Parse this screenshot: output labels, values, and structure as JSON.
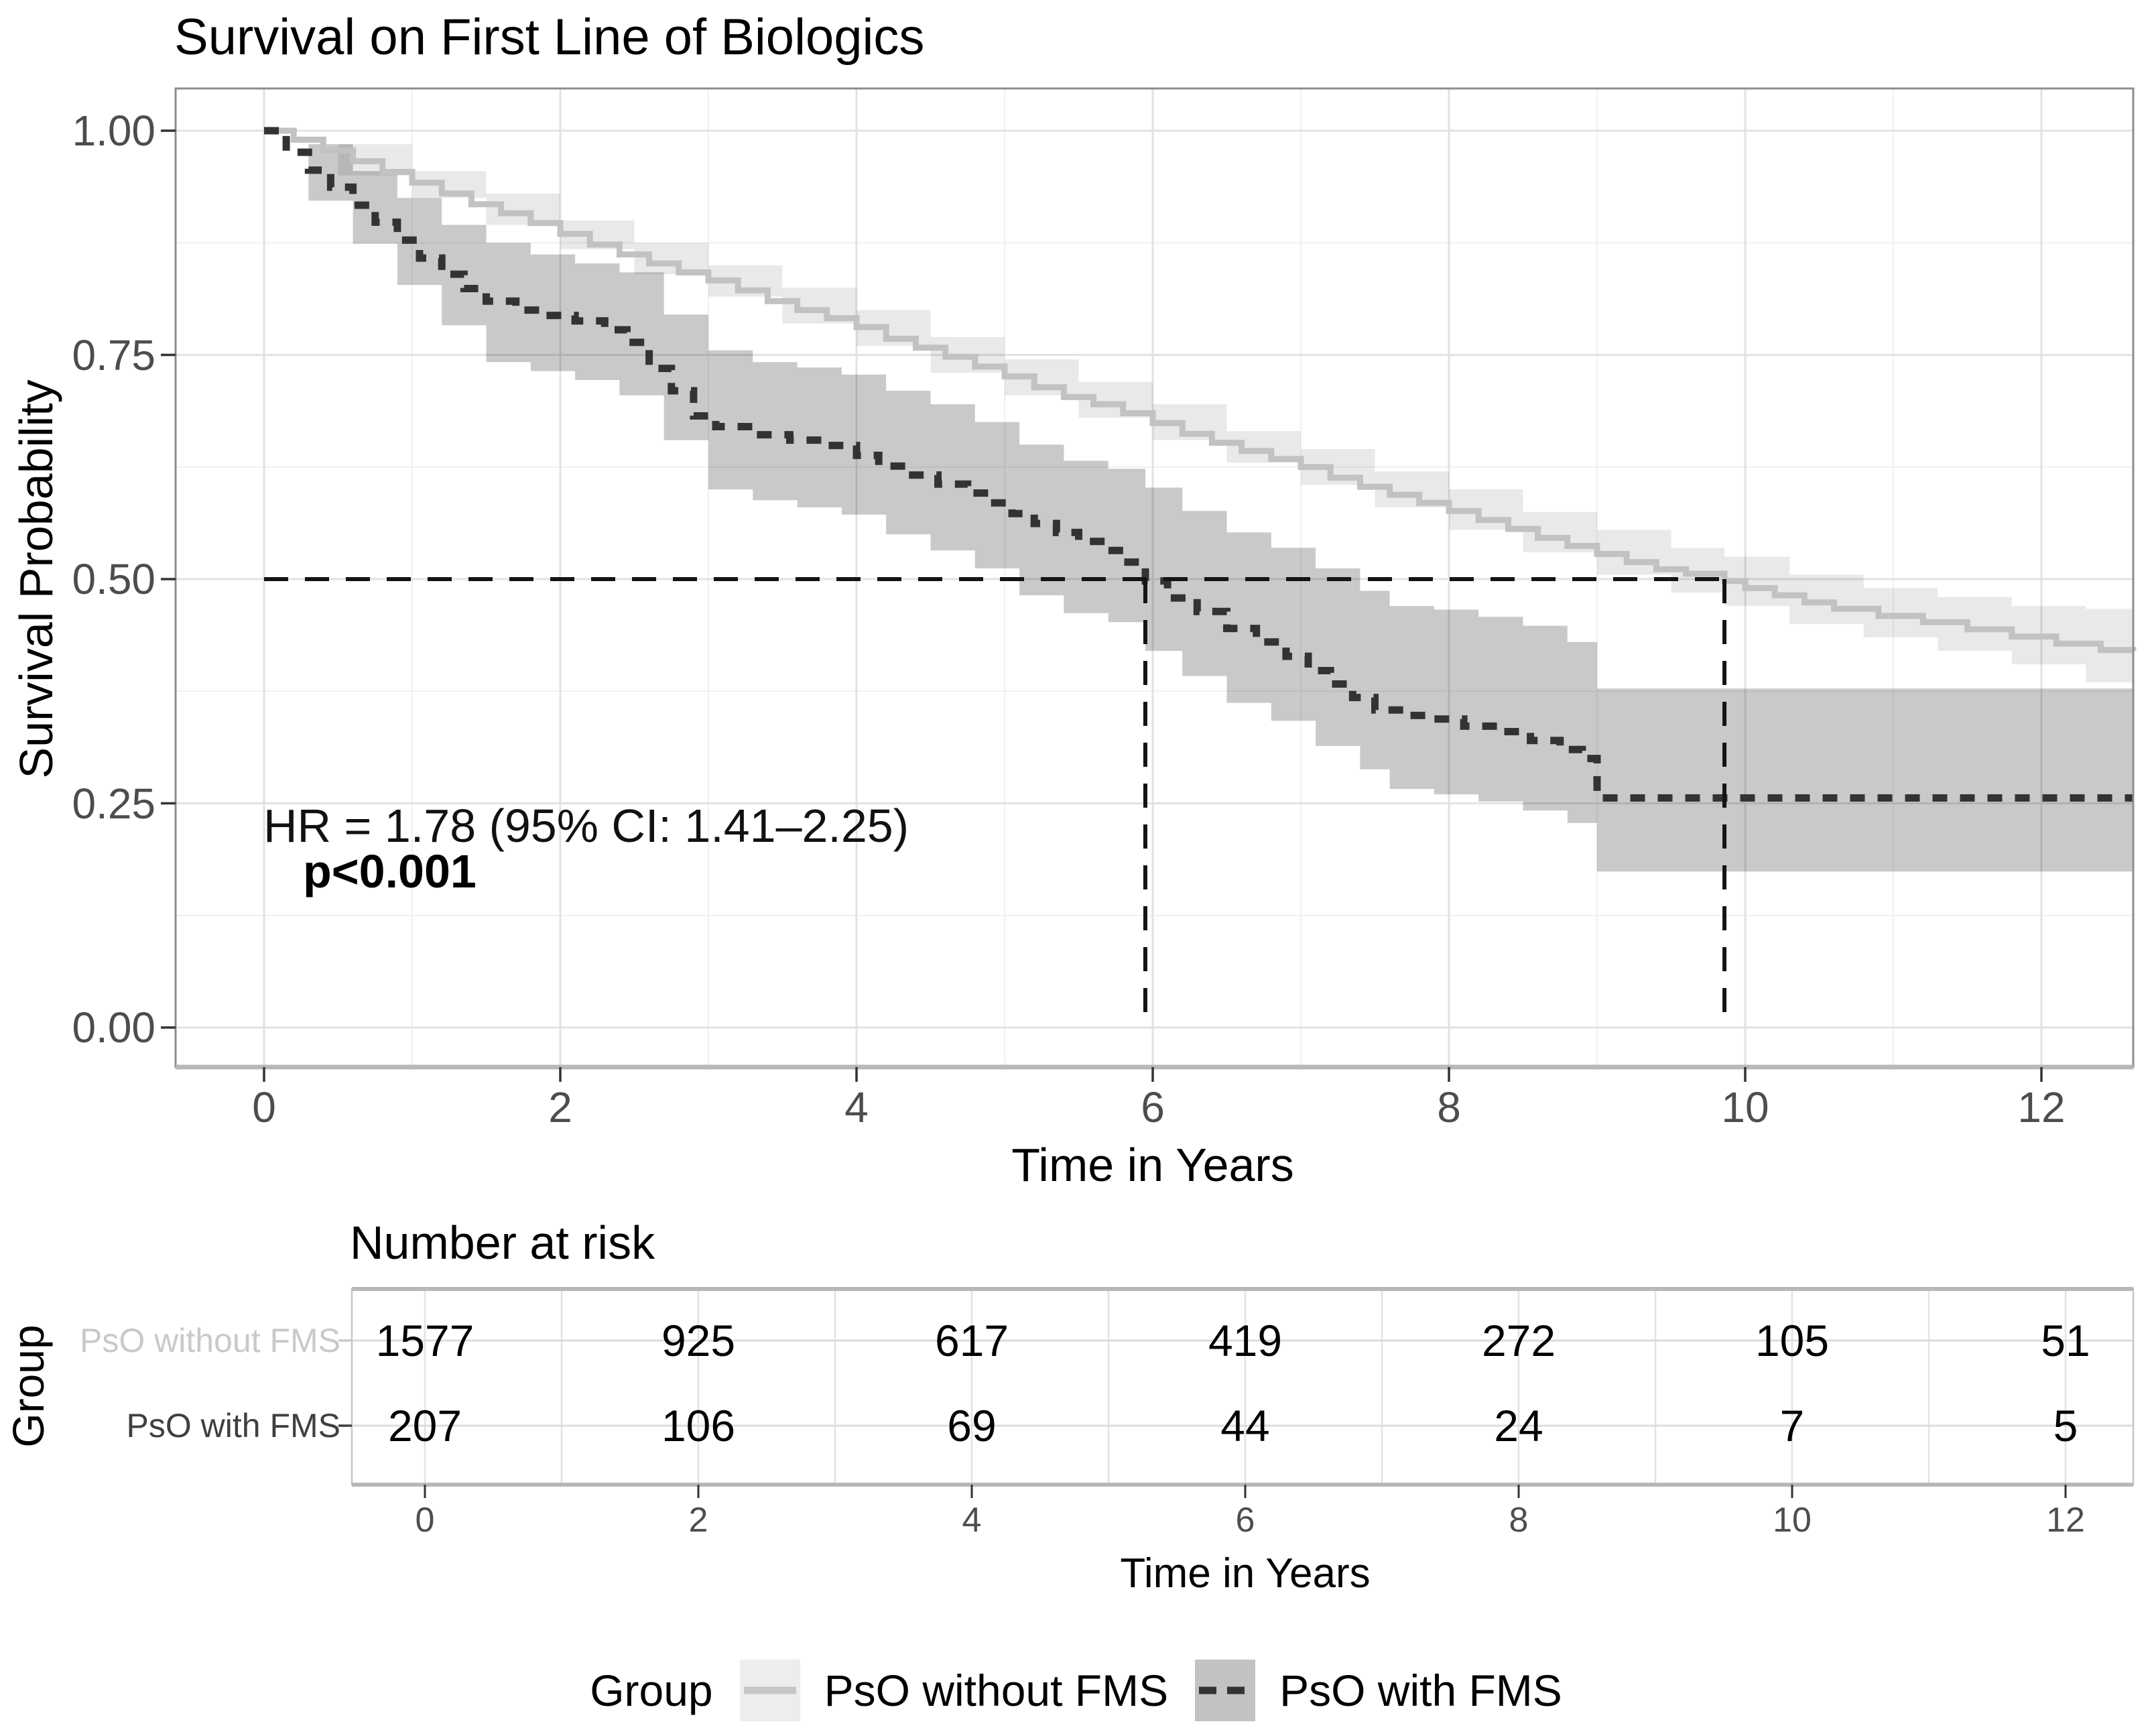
{
  "chart_data": {
    "type": "line",
    "subtype": "kaplan-meier-step",
    "title": "Survival on First Line of Biologics",
    "xlabel": "Time in Years",
    "ylabel": "Survival Probability",
    "xlim": [
      -0.6,
      12.62
    ],
    "ylim": [
      -0.045,
      1.047
    ],
    "x_ticks": [
      0,
      2,
      4,
      6,
      8,
      10,
      12
    ],
    "y_ticks": [
      {
        "label": "1.00",
        "value": 1.0
      },
      {
        "label": "0.75",
        "value": 0.75
      },
      {
        "label": "0.50",
        "value": 0.5
      },
      {
        "label": "0.25",
        "value": 0.25
      },
      {
        "label": "0.00",
        "value": 0.0
      }
    ],
    "grid": true,
    "legend_position": "bottom",
    "annotation": {
      "line1": "HR = 1.78 (95% CI: 1.41–2.25)",
      "line2": "p<0.001"
    },
    "median_lines": {
      "y": 0.5,
      "x_values": [
        5.95,
        9.86
      ]
    },
    "series": [
      {
        "name": "PsO without FMS",
        "color": "#C2C2C2",
        "band_color": "rgba(0,0,0,0.085)",
        "dashed": false,
        "steps": [
          [
            0,
            1.0
          ],
          [
            0.2,
            0.99
          ],
          [
            0.4,
            0.978
          ],
          [
            0.6,
            0.966
          ],
          [
            0.8,
            0.954
          ],
          [
            1.0,
            0.942
          ],
          [
            1.2,
            0.93
          ],
          [
            1.4,
            0.918
          ],
          [
            1.6,
            0.908
          ],
          [
            1.8,
            0.897
          ],
          [
            2.0,
            0.885
          ],
          [
            2.2,
            0.873
          ],
          [
            2.4,
            0.862
          ],
          [
            2.6,
            0.852
          ],
          [
            2.8,
            0.842
          ],
          [
            3.0,
            0.833
          ],
          [
            3.2,
            0.822
          ],
          [
            3.4,
            0.81
          ],
          [
            3.6,
            0.8
          ],
          [
            3.8,
            0.791
          ],
          [
            4.0,
            0.781
          ],
          [
            4.2,
            0.768
          ],
          [
            4.4,
            0.758
          ],
          [
            4.6,
            0.748
          ],
          [
            4.8,
            0.737
          ],
          [
            5.0,
            0.726
          ],
          [
            5.2,
            0.714
          ],
          [
            5.4,
            0.703
          ],
          [
            5.6,
            0.695
          ],
          [
            5.8,
            0.685
          ],
          [
            6.0,
            0.674
          ],
          [
            6.2,
            0.662
          ],
          [
            6.4,
            0.652
          ],
          [
            6.6,
            0.643
          ],
          [
            6.8,
            0.634
          ],
          [
            7.0,
            0.625
          ],
          [
            7.2,
            0.613
          ],
          [
            7.4,
            0.603
          ],
          [
            7.6,
            0.594
          ],
          [
            7.8,
            0.585
          ],
          [
            8.0,
            0.576
          ],
          [
            8.2,
            0.566
          ],
          [
            8.4,
            0.556
          ],
          [
            8.6,
            0.546
          ],
          [
            8.8,
            0.537
          ],
          [
            9.0,
            0.528
          ],
          [
            9.2,
            0.519
          ],
          [
            9.4,
            0.511
          ],
          [
            9.6,
            0.506
          ],
          [
            9.86,
            0.498
          ],
          [
            10.0,
            0.49
          ],
          [
            10.2,
            0.482
          ],
          [
            10.4,
            0.474
          ],
          [
            10.6,
            0.467
          ],
          [
            10.9,
            0.459
          ],
          [
            11.2,
            0.452
          ],
          [
            11.5,
            0.444
          ],
          [
            11.8,
            0.436
          ],
          [
            12.1,
            0.428
          ],
          [
            12.4,
            0.421
          ],
          [
            12.62,
            0.42
          ]
        ],
        "band": [
          [
            0,
            1.0,
            1.0
          ],
          [
            0.5,
            0.95,
            0.985
          ],
          [
            1,
            0.925,
            0.955
          ],
          [
            1.5,
            0.895,
            0.93
          ],
          [
            2,
            0.868,
            0.9
          ],
          [
            2.5,
            0.84,
            0.875
          ],
          [
            3,
            0.815,
            0.85
          ],
          [
            3.5,
            0.785,
            0.825
          ],
          [
            4,
            0.76,
            0.8
          ],
          [
            4.5,
            0.73,
            0.77
          ],
          [
            5,
            0.705,
            0.745
          ],
          [
            5.5,
            0.68,
            0.72
          ],
          [
            6,
            0.655,
            0.695
          ],
          [
            6.5,
            0.63,
            0.665
          ],
          [
            7,
            0.605,
            0.645
          ],
          [
            7.5,
            0.58,
            0.62
          ],
          [
            8,
            0.555,
            0.6
          ],
          [
            8.5,
            0.53,
            0.575
          ],
          [
            9,
            0.505,
            0.555
          ],
          [
            9.5,
            0.485,
            0.535
          ],
          [
            9.86,
            0.47,
            0.525
          ],
          [
            10.3,
            0.45,
            0.505
          ],
          [
            10.8,
            0.435,
            0.49
          ],
          [
            11.3,
            0.42,
            0.48
          ],
          [
            11.8,
            0.405,
            0.47
          ],
          [
            12.3,
            0.385,
            0.467
          ],
          [
            12.62,
            0.372,
            0.467
          ]
        ]
      },
      {
        "name": "PsO with FMS",
        "color": "#333333",
        "band_color": "rgba(0,0,0,0.21)",
        "dashed": true,
        "steps": [
          [
            0,
            1.0
          ],
          [
            0.15,
            0.976
          ],
          [
            0.3,
            0.956
          ],
          [
            0.45,
            0.937
          ],
          [
            0.6,
            0.917
          ],
          [
            0.75,
            0.898
          ],
          [
            0.9,
            0.878
          ],
          [
            1.05,
            0.858
          ],
          [
            1.2,
            0.84
          ],
          [
            1.35,
            0.824
          ],
          [
            1.5,
            0.81
          ],
          [
            1.7,
            0.8
          ],
          [
            1.9,
            0.794
          ],
          [
            2.1,
            0.788
          ],
          [
            2.3,
            0.778
          ],
          [
            2.45,
            0.764
          ],
          [
            2.6,
            0.735
          ],
          [
            2.75,
            0.71
          ],
          [
            2.9,
            0.682
          ],
          [
            3.05,
            0.67
          ],
          [
            3.3,
            0.661
          ],
          [
            3.55,
            0.655
          ],
          [
            3.8,
            0.649
          ],
          [
            4.0,
            0.638
          ],
          [
            4.15,
            0.626
          ],
          [
            4.35,
            0.616
          ],
          [
            4.55,
            0.606
          ],
          [
            4.75,
            0.596
          ],
          [
            4.9,
            0.585
          ],
          [
            5.05,
            0.573
          ],
          [
            5.2,
            0.562
          ],
          [
            5.35,
            0.552
          ],
          [
            5.5,
            0.542
          ],
          [
            5.65,
            0.532
          ],
          [
            5.8,
            0.519
          ],
          [
            5.95,
            0.498
          ],
          [
            6.1,
            0.479
          ],
          [
            6.3,
            0.464
          ],
          [
            6.5,
            0.445
          ],
          [
            6.7,
            0.43
          ],
          [
            6.9,
            0.414
          ],
          [
            7.05,
            0.398
          ],
          [
            7.2,
            0.383
          ],
          [
            7.35,
            0.368
          ],
          [
            7.5,
            0.354
          ],
          [
            7.7,
            0.348
          ],
          [
            7.9,
            0.344
          ],
          [
            8.1,
            0.336
          ],
          [
            8.35,
            0.33
          ],
          [
            8.55,
            0.32
          ],
          [
            8.75,
            0.31
          ],
          [
            8.9,
            0.3
          ],
          [
            9.0,
            0.256
          ],
          [
            12.62,
            0.256
          ]
        ],
        "band": [
          [
            0,
            1.0,
            1.0
          ],
          [
            0.3,
            0.922,
            0.985
          ],
          [
            0.6,
            0.874,
            0.955
          ],
          [
            0.9,
            0.828,
            0.925
          ],
          [
            1.2,
            0.783,
            0.895
          ],
          [
            1.5,
            0.742,
            0.875
          ],
          [
            1.8,
            0.732,
            0.862
          ],
          [
            2.1,
            0.722,
            0.852
          ],
          [
            2.4,
            0.705,
            0.842
          ],
          [
            2.7,
            0.655,
            0.795
          ],
          [
            3.0,
            0.6,
            0.755
          ],
          [
            3.3,
            0.588,
            0.742
          ],
          [
            3.6,
            0.58,
            0.736
          ],
          [
            3.9,
            0.572,
            0.728
          ],
          [
            4.2,
            0.55,
            0.71
          ],
          [
            4.5,
            0.532,
            0.695
          ],
          [
            4.8,
            0.512,
            0.675
          ],
          [
            5.1,
            0.482,
            0.65
          ],
          [
            5.4,
            0.462,
            0.632
          ],
          [
            5.7,
            0.452,
            0.623
          ],
          [
            5.95,
            0.42,
            0.602
          ],
          [
            6.2,
            0.392,
            0.576
          ],
          [
            6.5,
            0.362,
            0.552
          ],
          [
            6.8,
            0.342,
            0.535
          ],
          [
            7.1,
            0.314,
            0.512
          ],
          [
            7.4,
            0.288,
            0.487
          ],
          [
            7.6,
            0.266,
            0.47
          ],
          [
            7.9,
            0.26,
            0.466
          ],
          [
            8.2,
            0.252,
            0.458
          ],
          [
            8.5,
            0.242,
            0.448
          ],
          [
            8.8,
            0.228,
            0.43
          ],
          [
            9.0,
            0.174,
            0.378
          ],
          [
            12.62,
            0.174,
            0.378
          ]
        ]
      }
    ]
  },
  "risk_table": {
    "title": "Number at risk",
    "ylabel": "Group",
    "xlabel": "Time in Years",
    "x_ticks": [
      0,
      2,
      4,
      6,
      8,
      10,
      12
    ],
    "rows": [
      {
        "label": "PsO without FMS",
        "label_color": "#C9C9C9",
        "values": [
          1577,
          925,
          617,
          419,
          272,
          105,
          51
        ]
      },
      {
        "label": "PsO with FMS",
        "label_color": "#3F3F3F",
        "values": [
          207,
          106,
          69,
          44,
          24,
          7,
          5
        ]
      }
    ]
  },
  "legend": {
    "title": "Group",
    "entries": [
      {
        "label": "PsO without FMS",
        "key_bg": "#EDEDED",
        "line_color": "#C6C6C6",
        "dashed": false
      },
      {
        "label": "PsO with FMS",
        "key_bg": "#C2C2C2",
        "line_color": "#333333",
        "dashed": true
      }
    ]
  }
}
